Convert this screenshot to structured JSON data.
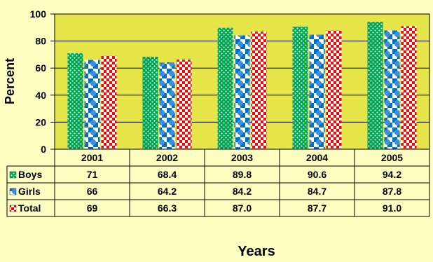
{
  "chart_data": {
    "type": "bar",
    "title": "",
    "xlabel": "Years",
    "ylabel": "Percent",
    "ylim": [
      0,
      100
    ],
    "yticks": [
      0,
      20,
      40,
      60,
      80,
      100
    ],
    "grid": true,
    "legend": "data table rows",
    "categories": [
      "2001",
      "2002",
      "2003",
      "2004",
      "2005"
    ],
    "series": [
      {
        "name": "Boys",
        "values": [
          71,
          68.4,
          89.8,
          90.6,
          94.2
        ],
        "labels": [
          "71",
          "68.4",
          "89.8",
          "90.6",
          "94.2"
        ],
        "color": "#00a651",
        "pattern": "dots"
      },
      {
        "name": "Girls",
        "values": [
          66,
          64.2,
          84.2,
          84.7,
          87.8
        ],
        "labels": [
          "66",
          "64.2",
          "84.2",
          "84.7",
          "87.8"
        ],
        "color": "#0070c0",
        "pattern": "checker-circles"
      },
      {
        "name": "Total",
        "values": [
          69,
          66.3,
          87.0,
          87.7,
          91.0
        ],
        "labels": [
          "69",
          "66.3",
          "87.0",
          "87.7",
          "91.0"
        ],
        "color": "#ff0000",
        "pattern": "checker"
      }
    ]
  }
}
